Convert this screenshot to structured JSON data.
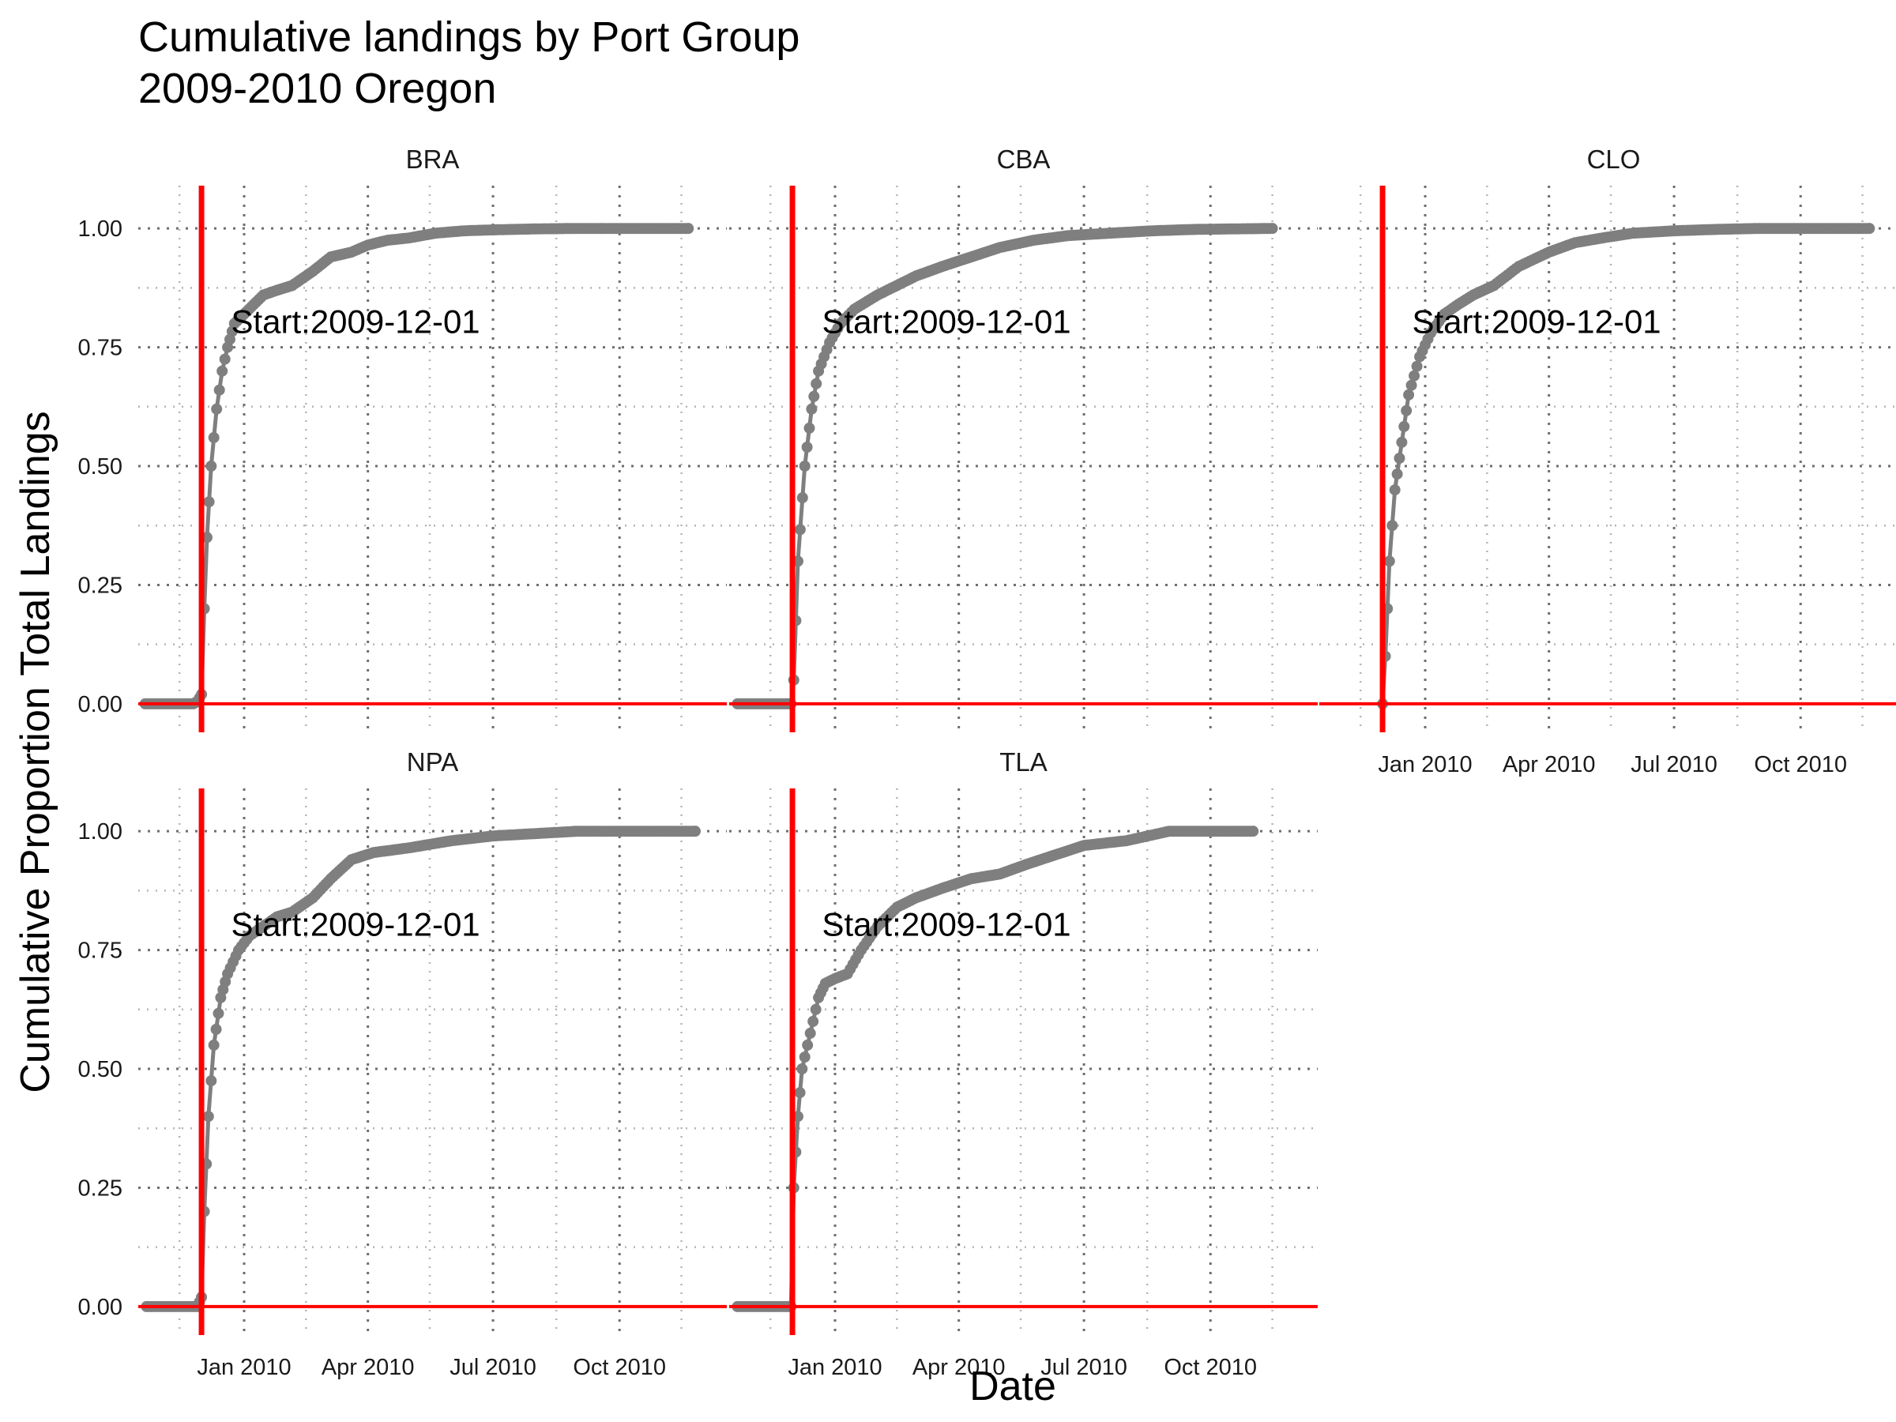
{
  "chart_data": {
    "type": "line",
    "title": "Cumulative landings by Port Group",
    "subtitle": "2009-2010 Oregon",
    "xlabel": "Date",
    "ylabel": "Cumulative Proportion Total Landings",
    "x_ticks": [
      "Jan 2010",
      "Apr 2010",
      "Jul 2010",
      "Oct 2010"
    ],
    "y_ticks": [
      "0.00",
      "0.25",
      "0.50",
      "0.75",
      "1.00"
    ],
    "ylim": [
      0,
      1
    ],
    "xlim": [
      "2009-10-16",
      "2010-12-18"
    ],
    "grid": true,
    "colors": {
      "series": "#7f7f7f",
      "reference": "#ff0000",
      "grid": "#6e6e6e"
    },
    "reference_lines": {
      "vertical_date": "2009-12-01",
      "horizontal_value": 0
    },
    "panels": [
      {
        "label": "BRA",
        "annotation": "Start:2009-12-01",
        "series": {
          "x": [
            "2009-10-21",
            "2009-11-25",
            "2009-11-28",
            "2009-12-01",
            "2009-12-03",
            "2009-12-05",
            "2009-12-08",
            "2009-12-12",
            "2009-12-16",
            "2009-12-20",
            "2009-12-25",
            "2010-01-01",
            "2010-01-08",
            "2010-01-15",
            "2010-01-25",
            "2010-02-05",
            "2010-02-20",
            "2010-03-05",
            "2010-03-20",
            "2010-04-01",
            "2010-04-15",
            "2010-05-01",
            "2010-05-20",
            "2010-06-10",
            "2010-07-01",
            "2010-08-01",
            "2010-09-01",
            "2010-11-20"
          ],
          "y": [
            0,
            0,
            0.005,
            0.02,
            0.2,
            0.35,
            0.5,
            0.62,
            0.7,
            0.75,
            0.8,
            0.82,
            0.84,
            0.86,
            0.87,
            0.88,
            0.91,
            0.94,
            0.95,
            0.965,
            0.975,
            0.98,
            0.99,
            0.995,
            0.997,
            0.999,
            1,
            1
          ]
        }
      },
      {
        "label": "CBA",
        "annotation": "Start:2009-12-01",
        "series": {
          "x": [
            "2009-10-22",
            "2009-11-30",
            "2009-12-02",
            "2009-12-05",
            "2009-12-10",
            "2009-12-15",
            "2009-12-20",
            "2009-12-28",
            "2010-01-05",
            "2010-01-15",
            "2010-02-01",
            "2010-02-15",
            "2010-03-01",
            "2010-03-20",
            "2010-04-10",
            "2010-05-01",
            "2010-05-25",
            "2010-06-20",
            "2010-07-20",
            "2010-08-20",
            "2010-09-20",
            "2010-11-15"
          ],
          "y": [
            0,
            0,
            0.05,
            0.3,
            0.5,
            0.62,
            0.7,
            0.76,
            0.8,
            0.83,
            0.86,
            0.88,
            0.9,
            0.92,
            0.94,
            0.96,
            0.975,
            0.985,
            0.99,
            0.995,
            0.998,
            1
          ]
        }
      },
      {
        "label": "CLO",
        "annotation": "Start:2009-12-01",
        "series": {
          "x": [
            "2009-12-01",
            "2009-12-03",
            "2009-12-06",
            "2009-12-10",
            "2009-12-15",
            "2009-12-20",
            "2009-12-28",
            "2010-01-05",
            "2010-01-15",
            "2010-01-25",
            "2010-02-05",
            "2010-02-20",
            "2010-03-10",
            "2010-04-01",
            "2010-04-20",
            "2010-05-10",
            "2010-06-01",
            "2010-07-01",
            "2010-08-01",
            "2010-09-01",
            "2010-10-15",
            "2010-11-20"
          ],
          "y": [
            0,
            0.1,
            0.3,
            0.45,
            0.55,
            0.65,
            0.73,
            0.78,
            0.82,
            0.84,
            0.86,
            0.88,
            0.92,
            0.95,
            0.97,
            0.98,
            0.99,
            0.995,
            0.998,
            1,
            1,
            1
          ]
        }
      },
      {
        "label": "NPA",
        "annotation": "Start:2009-12-01",
        "series": {
          "x": [
            "2009-10-22",
            "2009-11-28",
            "2009-12-01",
            "2009-12-03",
            "2009-12-06",
            "2009-12-10",
            "2009-12-15",
            "2009-12-20",
            "2009-12-28",
            "2010-01-05",
            "2010-01-15",
            "2010-01-25",
            "2010-02-05",
            "2010-02-20",
            "2010-03-05",
            "2010-03-20",
            "2010-04-05",
            "2010-05-01",
            "2010-06-01",
            "2010-07-01",
            "2010-08-01",
            "2010-09-01",
            "2010-11-25"
          ],
          "y": [
            0,
            0,
            0.02,
            0.2,
            0.4,
            0.55,
            0.65,
            0.7,
            0.75,
            0.78,
            0.8,
            0.82,
            0.83,
            0.86,
            0.9,
            0.94,
            0.955,
            0.965,
            0.98,
            0.99,
            0.995,
            1,
            1
          ]
        }
      },
      {
        "label": "TLA",
        "annotation": "Start:2009-12-01",
        "series": {
          "x": [
            "2009-10-22",
            "2009-11-30",
            "2009-12-02",
            "2009-12-05",
            "2009-12-08",
            "2009-12-12",
            "2009-12-16",
            "2009-12-20",
            "2009-12-25",
            "2010-01-01",
            "2010-01-10",
            "2010-01-20",
            "2010-02-01",
            "2010-02-15",
            "2010-03-01",
            "2010-03-20",
            "2010-04-10",
            "2010-05-01",
            "2010-05-20",
            "2010-06-10",
            "2010-07-01",
            "2010-08-01",
            "2010-09-01",
            "2010-11-01"
          ],
          "y": [
            0,
            0,
            0.25,
            0.4,
            0.5,
            0.55,
            0.6,
            0.65,
            0.68,
            0.69,
            0.7,
            0.75,
            0.8,
            0.84,
            0.86,
            0.88,
            0.9,
            0.91,
            0.93,
            0.95,
            0.97,
            0.98,
            1,
            1
          ]
        }
      }
    ]
  }
}
